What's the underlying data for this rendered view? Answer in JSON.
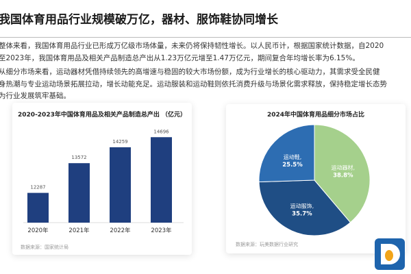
{
  "title": "我国体育用品行业规模破万亿，器材、服饰鞋协同增长",
  "paragraphs": [
    [
      "整体来看，我国体育用品行业已形成万亿级市场体量，未来仍将保持韧性增长。以人民币计，根据国家统计数据，自2020",
      "至2023年，我国体育用品及相关产品制造总产出从1.23万亿元增至1.47万亿元，期间复合年均增长率为6.15%。"
    ],
    [
      "从细分市场来看，运动器材凭借持续领先的高增速与稳固的较大市场份额，成为行业增长的核心驱动力，其需求受全民健",
      "身热潮与专业运动场景拓展拉动，增长动能充足。运动服装和运动鞋则依托消费升级与场景化需求释放，保持稳定增长态势",
      "为行业发展筑牢基础。"
    ]
  ],
  "chart_data": [
    {
      "type": "bar",
      "title": "2020-2023年中国体育用品及相关产品制造总产出 （亿元）",
      "categories": [
        "2020年",
        "2021年",
        "2022年",
        "2023年"
      ],
      "values": [
        12287,
        13572,
        14259,
        14696
      ],
      "ylim": [
        11000,
        15000
      ],
      "grid": false,
      "color": "#1f3f7f",
      "source": "数据来源：国家统计局"
    },
    {
      "type": "pie",
      "title": "2024年中国体育用品细分市场占比",
      "slices": [
        {
          "label": "运动器材,",
          "pct": "38.8%",
          "value": 38.8,
          "color": "#a5d08c"
        },
        {
          "label": "运动服饰,",
          "pct": "35.7%",
          "value": 35.7,
          "color": "#1f4e85"
        },
        {
          "label": "运动鞋,",
          "pct": "25.5%",
          "value": 25.5,
          "color": "#2d6db2"
        }
      ],
      "source": "数据来源：玩美数据行业研究"
    }
  ],
  "logo": {
    "letter": "D",
    "color": "#1e64ad"
  }
}
